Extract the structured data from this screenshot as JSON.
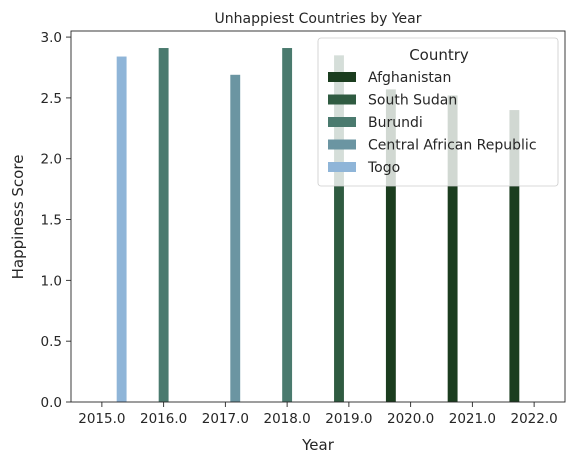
{
  "chart_data": {
    "type": "bar",
    "title": "Unhappiest Countries by Year",
    "xlabel": "Year",
    "ylabel": "Happiness Score",
    "categories": [
      "2015.0",
      "2016.0",
      "2017.0",
      "2018.0",
      "2019.0",
      "2020.0",
      "2021.0",
      "2022.0"
    ],
    "ylim": [
      0,
      3.05
    ],
    "yticks": [
      "0.0",
      "0.5",
      "1.0",
      "1.5",
      "2.0",
      "2.5",
      "3.0"
    ],
    "grid": false,
    "legend": {
      "title": "Country",
      "placement": "top-right"
    },
    "series": [
      {
        "name": "Afghanistan",
        "color": "#1b3d1f",
        "values": [
          null,
          null,
          null,
          null,
          null,
          2.57,
          2.52,
          2.4
        ]
      },
      {
        "name": "South Sudan",
        "color": "#2f5b41",
        "values": [
          null,
          null,
          null,
          null,
          2.85,
          null,
          null,
          null
        ]
      },
      {
        "name": "Burundi",
        "color": "#4a7a6e",
        "values": [
          null,
          2.91,
          null,
          2.91,
          null,
          null,
          null,
          null
        ]
      },
      {
        "name": "Central African Republic",
        "color": "#6b95a2",
        "values": [
          null,
          null,
          2.69,
          null,
          null,
          null,
          null,
          null
        ]
      },
      {
        "name": "Togo",
        "color": "#8fb5d8",
        "values": [
          2.84,
          null,
          null,
          null,
          null,
          null,
          null,
          null
        ]
      }
    ]
  }
}
